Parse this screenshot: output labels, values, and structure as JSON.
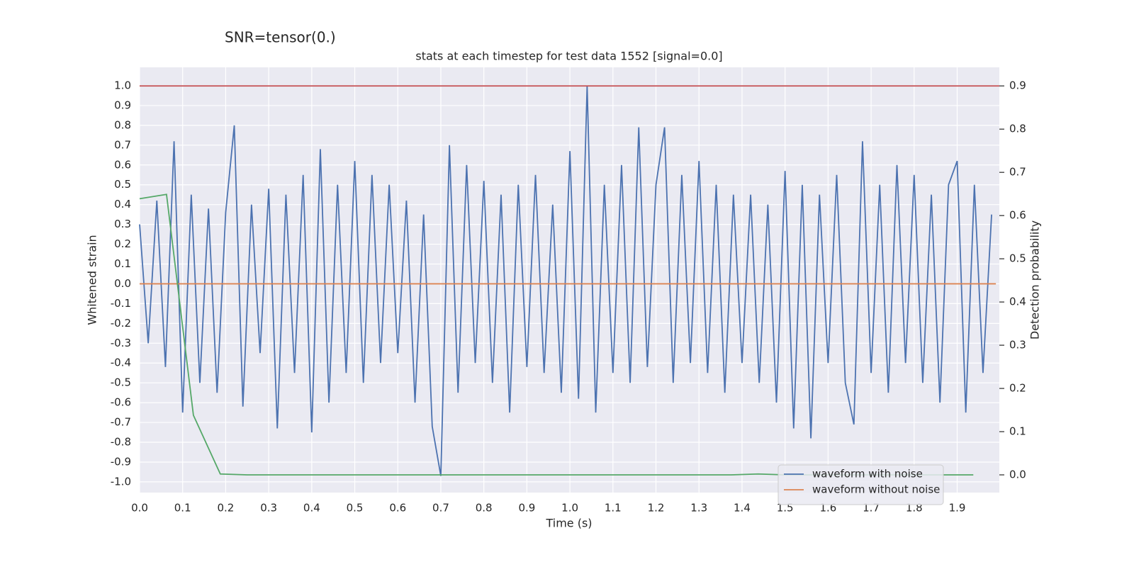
{
  "chart_data": {
    "type": "line",
    "title": "SNR=tensor(0.)",
    "subtitle": "stats at each timestep for test data 1552 [signal=0.0]",
    "x_label": "Time (s)",
    "y_label": "Whitened strain",
    "y2_label": "Detection probability",
    "xlim": [
      0,
      1.998
    ],
    "ylim": [
      -1.054,
      1.093
    ],
    "y2lim": [
      -0.041,
      0.943
    ],
    "xticks": [
      {
        "value": 0,
        "label": "0.0"
      },
      0.1,
      0.2,
      0.3,
      0.4,
      0.5,
      0.6,
      0.7,
      0.8,
      0.9,
      {
        "value": 1,
        "label": "1.0"
      },
      1.1,
      1.2,
      1.3,
      1.4,
      1.5,
      1.6,
      1.7,
      1.8,
      1.9
    ],
    "yticks": [
      {
        "value": -1,
        "label": "-1.0"
      },
      -0.9,
      -0.8,
      -0.7,
      -0.6,
      -0.5,
      -0.4,
      -0.3,
      -0.2,
      -0.1,
      {
        "value": 0,
        "label": "0.0"
      },
      0.1,
      0.2,
      0.3,
      0.4,
      0.5,
      0.6,
      0.7,
      0.8,
      0.9,
      {
        "value": 1,
        "label": "1.0"
      }
    ],
    "y2ticks": [
      {
        "value": 0,
        "label": "0.0"
      },
      0.1,
      0.2,
      0.3,
      0.4,
      0.5,
      0.6,
      0.7,
      0.8,
      0.9
    ],
    "grid": true,
    "legend": "lower right",
    "series": [
      {
        "name": "waveform with noise",
        "color": "#4c72b0",
        "axis": "y",
        "x": [
          0,
          0.02,
          0.04,
          0.06,
          0.08,
          0.1,
          0.12,
          0.14,
          0.16,
          0.18,
          0.2,
          0.22,
          0.24,
          0.26,
          0.28,
          0.3,
          0.32,
          0.34,
          0.36,
          0.38,
          0.4,
          0.42,
          0.44,
          0.46,
          0.48,
          0.5,
          0.52,
          0.54,
          0.56,
          0.58,
          0.6,
          0.62,
          0.64,
          0.66,
          0.68,
          0.7,
          0.72,
          0.74,
          0.76,
          0.78,
          0.8,
          0.82,
          0.84,
          0.86,
          0.88,
          0.9,
          0.92,
          0.94,
          0.96,
          0.98,
          1,
          1.02,
          1.04,
          1.06,
          1.08,
          1.1,
          1.12,
          1.14,
          1.16,
          1.18,
          1.2,
          1.22,
          1.24,
          1.26,
          1.28,
          1.3,
          1.32,
          1.34,
          1.36,
          1.38,
          1.4,
          1.42,
          1.44,
          1.46,
          1.48,
          1.5,
          1.52,
          1.54,
          1.56,
          1.58,
          1.6,
          1.62,
          1.64,
          1.66,
          1.68,
          1.7,
          1.72,
          1.74,
          1.76,
          1.78,
          1.8,
          1.82,
          1.84,
          1.86,
          1.88,
          1.9,
          1.92,
          1.94,
          1.96,
          1.98
        ],
        "values": [
          0.3,
          -0.3,
          0.42,
          -0.42,
          0.72,
          -0.65,
          0.45,
          -0.5,
          0.38,
          -0.55,
          0.36,
          0.8,
          -0.62,
          0.4,
          -0.35,
          0.48,
          -0.73,
          0.45,
          -0.45,
          0.55,
          -0.75,
          0.68,
          -0.6,
          0.5,
          -0.45,
          0.62,
          -0.5,
          0.55,
          -0.4,
          0.5,
          -0.35,
          0.42,
          -0.6,
          0.35,
          -0.72,
          -0.97,
          0.7,
          -0.55,
          0.6,
          -0.4,
          0.52,
          -0.5,
          0.45,
          -0.65,
          0.5,
          -0.42,
          0.55,
          -0.45,
          0.4,
          -0.55,
          0.67,
          -0.58,
          1.0,
          -0.65,
          0.5,
          -0.45,
          0.6,
          -0.5,
          0.79,
          -0.42,
          0.5,
          0.79,
          -0.5,
          0.55,
          -0.4,
          0.62,
          -0.45,
          0.5,
          -0.55,
          0.45,
          -0.4,
          0.45,
          -0.5,
          0.4,
          -0.6,
          0.57,
          -0.73,
          0.5,
          -0.78,
          0.45,
          -0.4,
          0.55,
          -0.5,
          -0.71,
          0.72,
          -0.45,
          0.5,
          -0.55,
          0.6,
          -0.4,
          0.55,
          -0.5,
          0.45,
          -0.6,
          0.5,
          0.62,
          -0.65,
          0.5,
          -0.45,
          0.35
        ]
      },
      {
        "name": "waveform without noise",
        "color": "#dd8452",
        "axis": "y",
        "x": [
          0,
          1.99
        ],
        "values": [
          0,
          0
        ]
      },
      {
        "color": "#c44e52",
        "axis": "y2",
        "x": [
          0,
          1.998
        ],
        "values": [
          0.9,
          0.9
        ]
      },
      {
        "color": "#55a868",
        "axis": "y2",
        "x": [
          0,
          0.0625,
          0.125,
          0.1875,
          0.25,
          0.3125,
          0.375,
          0.4375,
          0.5,
          0.5625,
          0.625,
          0.6875,
          0.75,
          0.8125,
          0.875,
          0.9375,
          1,
          1.0625,
          1.125,
          1.1875,
          1.25,
          1.3125,
          1.375,
          1.4375,
          1.5,
          1.5625,
          1.625,
          1.6875,
          1.75,
          1.8125,
          1.875,
          1.9375
        ],
        "values": [
          0.639,
          0.649,
          0.138,
          0.002,
          0,
          0,
          0,
          0,
          0,
          0,
          0,
          0,
          0,
          0,
          0,
          0,
          0,
          0,
          0,
          0,
          0,
          0,
          0,
          0.002,
          0,
          0,
          0,
          0,
          0,
          0,
          0,
          0
        ]
      }
    ]
  }
}
